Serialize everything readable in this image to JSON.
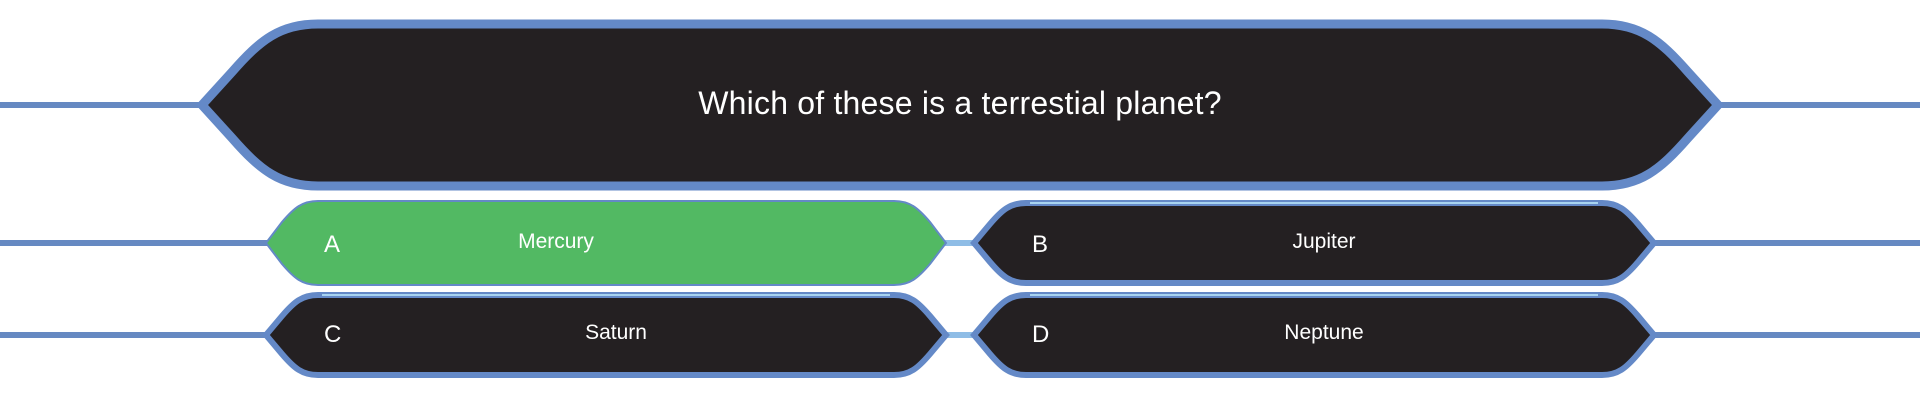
{
  "question": {
    "text": "Which of these is a terrestial planet?"
  },
  "answers": [
    {
      "letter": "A",
      "text": "Mercury",
      "state": "correct"
    },
    {
      "letter": "B",
      "text": "Jupiter",
      "state": "default"
    },
    {
      "letter": "C",
      "text": "Saturn",
      "state": "default"
    },
    {
      "letter": "D",
      "text": "Neptune",
      "state": "default"
    }
  ],
  "colors": {
    "panel": "#242022",
    "border": "#6489c7",
    "glow": "#a8d4f0",
    "line": "#6689c2",
    "correct": "#52b963",
    "text": "#ffffff"
  }
}
